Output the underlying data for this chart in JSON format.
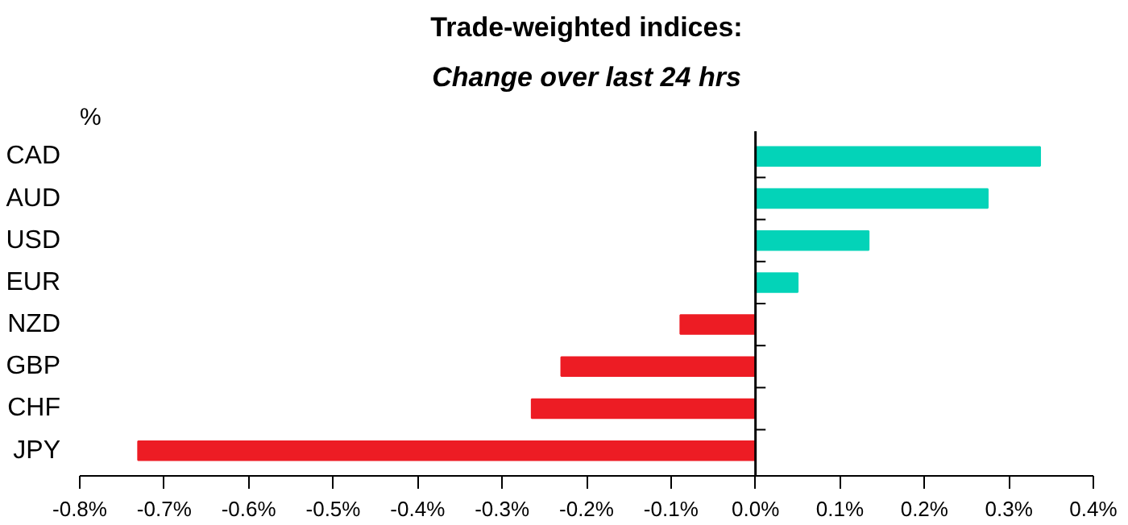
{
  "chart_data": {
    "type": "bar",
    "orientation": "horizontal",
    "title": "Trade-weighted indices:",
    "subtitle": "Change over last 24 hrs",
    "ylabel": "%",
    "categories": [
      "CAD",
      "AUD",
      "USD",
      "EUR",
      "NZD",
      "GBP",
      "CHF",
      "JPY"
    ],
    "values": [
      0.337,
      0.275,
      0.134,
      0.05,
      -0.089,
      -0.23,
      -0.265,
      -0.731
    ],
    "colors": [
      "#03d3b8",
      "#03d3b8",
      "#03d3b8",
      "#03d3b8",
      "#ed1c24",
      "#ed1c24",
      "#ed1c24",
      "#ed1c24"
    ],
    "xlim": [
      -0.8,
      0.4
    ],
    "legend": false,
    "xticks": [
      {
        "value": -0.8,
        "label": "-0.8%"
      },
      {
        "value": -0.7,
        "label": "-0.7%"
      },
      {
        "value": -0.6,
        "label": "-0.6%"
      },
      {
        "value": -0.5,
        "label": "-0.5%"
      },
      {
        "value": -0.4,
        "label": "-0.4%"
      },
      {
        "value": -0.3,
        "label": "-0.3%"
      },
      {
        "value": -0.2,
        "label": "-0.2%"
      },
      {
        "value": -0.1,
        "label": "-0.1%"
      },
      {
        "value": 0.0,
        "label": "0.0%"
      },
      {
        "value": 0.1,
        "label": "0.1%"
      },
      {
        "value": 0.2,
        "label": "0.2%"
      },
      {
        "value": 0.3,
        "label": "0.3%"
      },
      {
        "value": 0.4,
        "label": "0.4%"
      }
    ],
    "tick_labels": true
  }
}
